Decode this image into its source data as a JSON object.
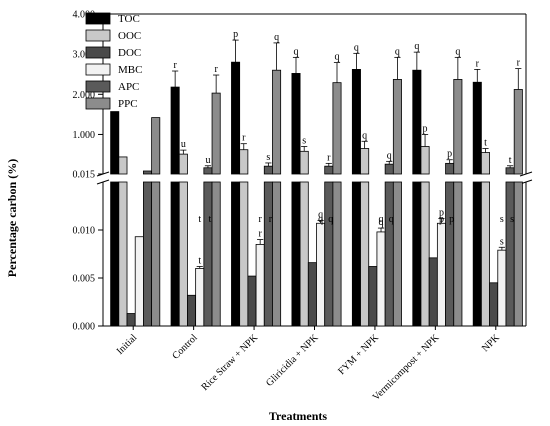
{
  "chart_data": {
    "type": "bar",
    "xlabel": "Treatments",
    "ylabel": "Percentage carbon (%)",
    "axis_break": true,
    "upper_panel": {
      "ylim": [
        0.015,
        4.0
      ],
      "ticks": [
        "0.015",
        "1.000",
        "2.000",
        "3.000",
        "4.000"
      ],
      "tick_values": [
        0.015,
        1.0,
        2.0,
        3.0,
        4.0
      ]
    },
    "lower_panel": {
      "ylim": [
        0,
        0.015
      ],
      "ticks": [
        "0.000",
        "0.005",
        "0.010"
      ],
      "tick_values": [
        0,
        0.005,
        0.01
      ]
    },
    "categories": [
      "Initial",
      "Control",
      "Rice Straw + NPK",
      "Gliricidia + NPK",
      "FYM + NPK",
      "Vermicompost + NPK",
      "NPK"
    ],
    "legend_position": "top-left",
    "series": [
      {
        "name": "TOC",
        "color": "#000000",
        "values": [
          1.57,
          2.18,
          2.8,
          2.52,
          2.62,
          2.6,
          2.3
        ],
        "errors": [
          null,
          0.4,
          0.55,
          0.4,
          0.4,
          0.45,
          0.32
        ],
        "labels": [
          "",
          "r",
          "p",
          "q",
          "q",
          "q",
          "r"
        ]
      },
      {
        "name": "OOC",
        "color": "#c8c8c8",
        "values": [
          0.44,
          0.51,
          0.62,
          0.58,
          0.65,
          0.7,
          0.55
        ],
        "errors": [
          null,
          0.1,
          0.15,
          0.12,
          0.18,
          0.3,
          0.1
        ],
        "labels": [
          "",
          "u",
          "r",
          "s",
          "q",
          "p",
          "t"
        ]
      },
      {
        "name": "DOC",
        "color": "#4a4a4a",
        "values": [
          0.0013,
          0.0032,
          0.0052,
          0.0066,
          0.0062,
          0.0071,
          0.0045
        ],
        "errors": [
          null,
          null,
          null,
          null,
          null,
          null,
          null
        ],
        "labels": [
          "",
          "",
          "",
          "",
          "",
          "",
          ""
        ]
      },
      {
        "name": "MBC",
        "color": "#f2f2f2",
        "values": [
          0.0093,
          0.006,
          0.0085,
          0.0107,
          0.0098,
          0.0107,
          0.0079
        ],
        "errors": [
          null,
          0.0002,
          0.0005,
          0.0003,
          0.0004,
          0.0005,
          0.0003
        ],
        "labels": [
          "",
          "t",
          "r",
          "q",
          "q",
          "p",
          "s"
        ]
      },
      {
        "name": "APC",
        "color": "#5a5a5a",
        "values": [
          0.09,
          0.17,
          0.21,
          0.21,
          0.26,
          0.28,
          0.17
        ],
        "errors": [
          null,
          0.05,
          0.08,
          0.07,
          0.07,
          0.09,
          0.05
        ],
        "labels": [
          "",
          "u",
          "s",
          "r",
          "q",
          "p",
          "t"
        ]
      },
      {
        "name": "PPC",
        "color": "#8c8c8c",
        "values": [
          1.42,
          2.03,
          2.6,
          2.29,
          2.37,
          2.37,
          2.12
        ],
        "errors": [
          null,
          0.45,
          0.68,
          0.5,
          0.55,
          0.55,
          0.52
        ],
        "labels": [
          "",
          "r",
          "q",
          "q",
          "q",
          "q",
          "r"
        ]
      }
    ],
    "lower_sig_labels": [
      {
        "category": "Control",
        "labels": [
          "t",
          "t"
        ]
      },
      {
        "category": "Rice Straw + NPK",
        "labels": [
          "r",
          "r"
        ]
      },
      {
        "category": "Gliricidia + NPK",
        "labels": [
          "q",
          "q"
        ]
      },
      {
        "category": "FYM + NPK",
        "labels": [
          "q",
          "q"
        ]
      },
      {
        "category": "Vermicompost + NPK",
        "labels": [
          "p",
          "p"
        ]
      },
      {
        "category": "NPK",
        "labels": [
          "s",
          "s"
        ]
      }
    ]
  }
}
